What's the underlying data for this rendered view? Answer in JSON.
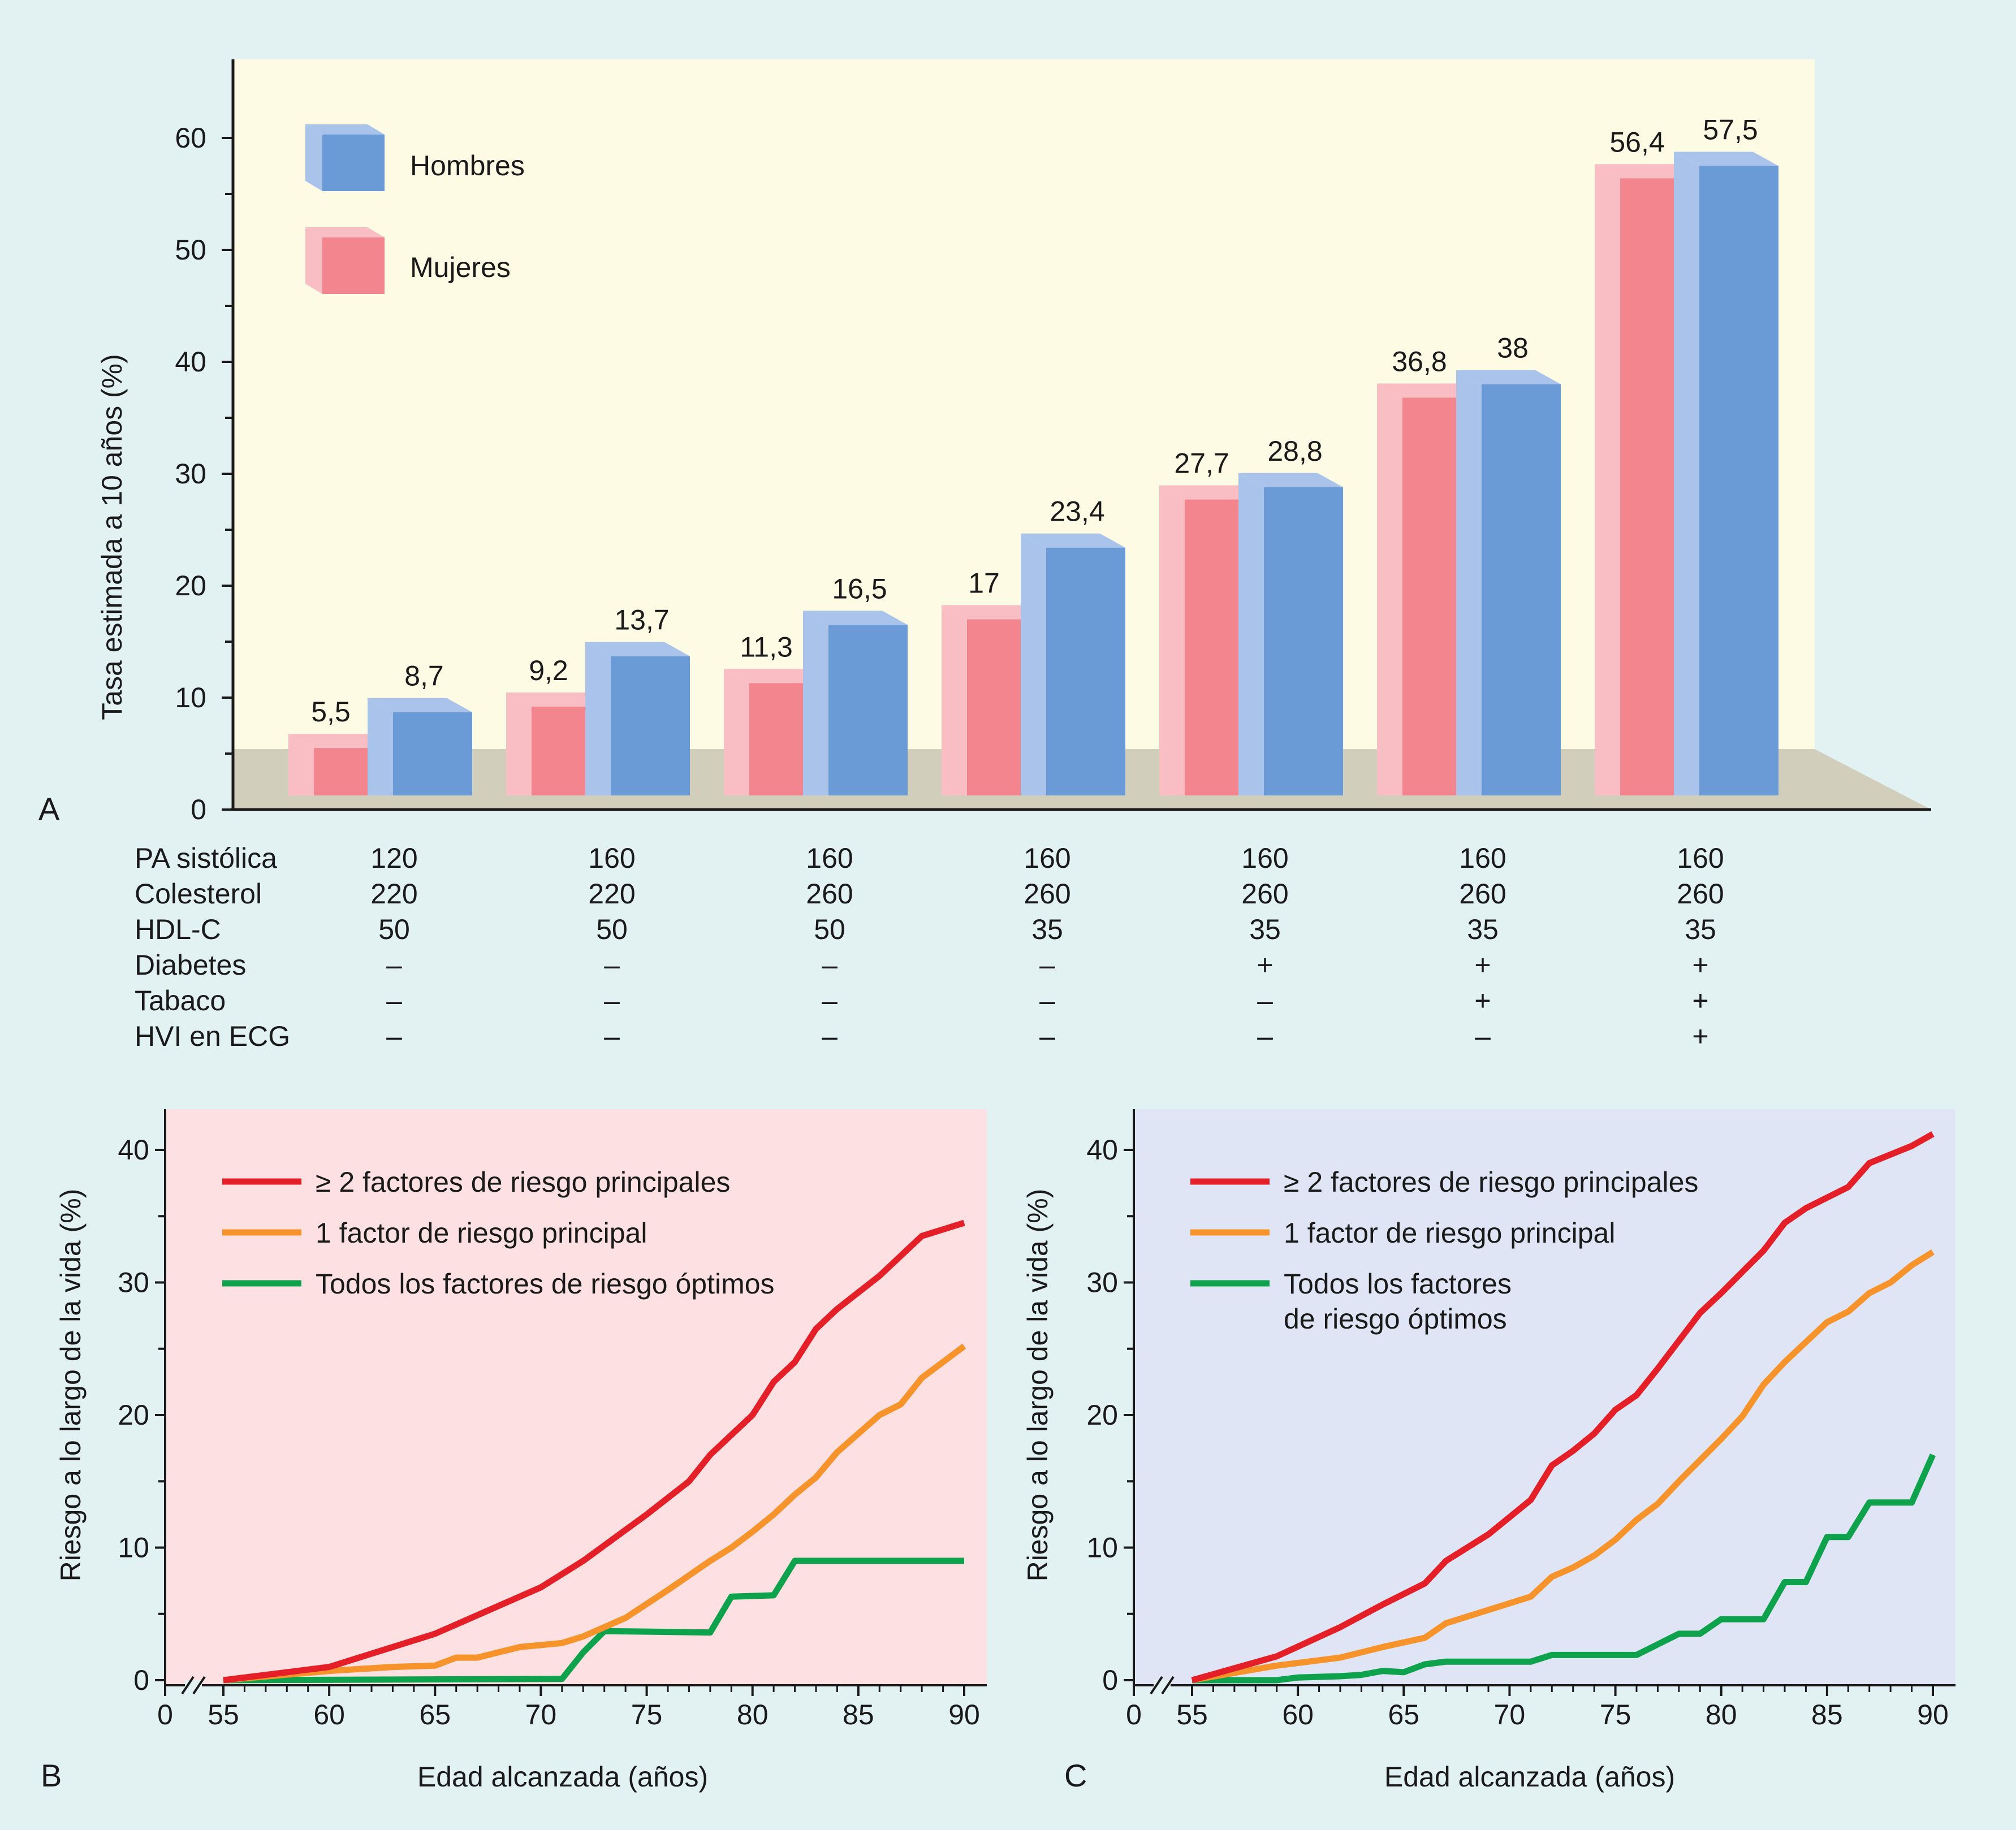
{
  "colors": {
    "outer_bg": "#e2f1f1",
    "panel_a_bg": "#fdfbe3",
    "floor": "#d2cebc",
    "men": "#6a9bd6",
    "men_light": "#a9c3ea",
    "women": "#f3858f",
    "women_light": "#f9bec3",
    "panel_b_bg": "#fde0e2",
    "panel_c_bg": "#dfe5f4",
    "red": "#e41f27",
    "orange": "#f6932a",
    "green": "#0fa24c"
  },
  "chart_data": [
    {
      "panel_label": "A",
      "type": "bar",
      "ylabel": "Tasa estimada a 10 años (%)",
      "ylim": [
        0,
        60
      ],
      "yticks": [
        "0",
        "10",
        "20",
        "30",
        "40",
        "50",
        "60"
      ],
      "legend": [
        "Hombres",
        "Mujeres"
      ],
      "series": [
        {
          "name": "Mujeres",
          "color": "women",
          "values": [
            5.5,
            9.2,
            11.3,
            17,
            27.7,
            36.8,
            56.4
          ],
          "labels": [
            "5,5",
            "9,2",
            "11,3",
            "17",
            "27,7",
            "36,8",
            "56,4"
          ]
        },
        {
          "name": "Hombres",
          "color": "men",
          "values": [
            8.7,
            13.7,
            16.5,
            23.4,
            28.8,
            38,
            57.5
          ],
          "labels": [
            "8,7",
            "13,7",
            "16,5",
            "23,4",
            "28,8",
            "38",
            "57,5"
          ]
        }
      ],
      "table": {
        "row_labels": [
          "PA sistólica",
          "Colesterol",
          "HDL-C",
          "Diabetes",
          "Tabaco",
          "HVI en ECG"
        ],
        "columns": [
          [
            "120",
            "220",
            "50",
            "–",
            "–",
            "–"
          ],
          [
            "160",
            "220",
            "50",
            "–",
            "–",
            "–"
          ],
          [
            "160",
            "260",
            "50",
            "–",
            "–",
            "–"
          ],
          [
            "160",
            "260",
            "35",
            "–",
            "–",
            "–"
          ],
          [
            "160",
            "260",
            "35",
            "+",
            "–",
            "–"
          ],
          [
            "160",
            "260",
            "35",
            "+",
            "+",
            "–"
          ],
          [
            "160",
            "260",
            "35",
            "+",
            "+",
            "+"
          ]
        ]
      }
    },
    {
      "panel_label": "B",
      "type": "line",
      "xlabel": "Edad alcanzada (años)",
      "ylabel": "Riesgo a lo largo de la vida (%)",
      "xlim": [
        55,
        90
      ],
      "ylim": [
        0,
        40
      ],
      "xticks": [
        "0",
        "55",
        "60",
        "65",
        "70",
        "75",
        "80",
        "85",
        "90"
      ],
      "yticks": [
        "0",
        "10",
        "20",
        "30",
        "40"
      ],
      "legend_lines": [
        [
          "≥ 2 factores de riesgo principales"
        ],
        [
          "1 factor de riesgo principal"
        ],
        [
          "Todos los factores de riesgo óptimos"
        ]
      ],
      "series": [
        {
          "name": "≥ 2 factores de riesgo principales",
          "color": "red",
          "points": [
            [
              55,
              0
            ],
            [
              60,
              1
            ],
            [
              65,
              3.5
            ],
            [
              70,
              7
            ],
            [
              72,
              9
            ],
            [
              75,
              12.5
            ],
            [
              77,
              15
            ],
            [
              78,
              17
            ],
            [
              80,
              20
            ],
            [
              81,
              22.5
            ],
            [
              82,
              24
            ],
            [
              83,
              26.5
            ],
            [
              84,
              28
            ],
            [
              86,
              30.5
            ],
            [
              88,
              33.5
            ],
            [
              90,
              34.5
            ]
          ]
        },
        {
          "name": "1 factor de riesgo principal",
          "color": "orange",
          "points": [
            [
              55,
              0
            ],
            [
              60,
              0.7
            ],
            [
              63,
              1
            ],
            [
              65,
              1.1
            ],
            [
              66,
              1.7
            ],
            [
              67,
              1.7
            ],
            [
              69,
              2.5
            ],
            [
              71,
              2.8
            ],
            [
              72,
              3.3
            ],
            [
              74,
              4.7
            ],
            [
              76,
              6.8
            ],
            [
              78,
              9
            ],
            [
              79,
              10
            ],
            [
              80,
              11.2
            ],
            [
              81,
              12.5
            ],
            [
              82,
              14
            ],
            [
              83,
              15.3
            ],
            [
              84,
              17.2
            ],
            [
              86,
              20
            ],
            [
              87,
              20.8
            ],
            [
              88,
              22.8
            ],
            [
              90,
              25.2
            ]
          ]
        },
        {
          "name": "Todos los factores de riesgo óptimos",
          "color": "green",
          "points": [
            [
              55,
              0
            ],
            [
              71,
              0.1
            ],
            [
              72,
              2.1
            ],
            [
              73,
              3.7
            ],
            [
              78,
              3.6
            ],
            [
              79,
              6.3
            ],
            [
              81,
              6.4
            ],
            [
              82,
              9
            ],
            [
              90,
              9
            ]
          ]
        }
      ]
    },
    {
      "panel_label": "C",
      "type": "line",
      "xlabel": "Edad alcanzada (años)",
      "ylabel": "Riesgo a lo largo de la vida (%)",
      "xlim": [
        55,
        90
      ],
      "ylim": [
        0,
        40
      ],
      "xticks": [
        "0",
        "55",
        "60",
        "65",
        "70",
        "75",
        "80",
        "85",
        "90"
      ],
      "yticks": [
        "0",
        "10",
        "20",
        "30",
        "40"
      ],
      "legend_lines": [
        [
          "≥ 2 factores de riesgo principales"
        ],
        [
          "1 factor de riesgo principal"
        ],
        [
          "Todos los factores",
          "de riesgo óptimos"
        ]
      ],
      "series": [
        {
          "name": "≥ 2 factores de riesgo principales",
          "color": "red",
          "points": [
            [
              55,
              0
            ],
            [
              59,
              1.8
            ],
            [
              62,
              4
            ],
            [
              64,
              5.7
            ],
            [
              66,
              7.3
            ],
            [
              67,
              9
            ],
            [
              69,
              11
            ],
            [
              71,
              13.6
            ],
            [
              72,
              16.2
            ],
            [
              73,
              17.3
            ],
            [
              74,
              18.6
            ],
            [
              75,
              20.4
            ],
            [
              76,
              21.5
            ],
            [
              77,
              23.5
            ],
            [
              79,
              27.7
            ],
            [
              80,
              29.2
            ],
            [
              81,
              30.8
            ],
            [
              82,
              32.4
            ],
            [
              83,
              34.5
            ],
            [
              84,
              35.6
            ],
            [
              86,
              37.2
            ],
            [
              87,
              39
            ],
            [
              89,
              40.3
            ],
            [
              90,
              41.2
            ]
          ]
        },
        {
          "name": "1 factor de riesgo principal",
          "color": "orange",
          "points": [
            [
              55,
              0
            ],
            [
              59,
              1.1
            ],
            [
              62,
              1.7
            ],
            [
              64,
              2.5
            ],
            [
              66,
              3.2
            ],
            [
              67,
              4.3
            ],
            [
              69,
              5.3
            ],
            [
              71,
              6.3
            ],
            [
              72,
              7.8
            ],
            [
              73,
              8.5
            ],
            [
              74,
              9.4
            ],
            [
              75,
              10.6
            ],
            [
              76,
              12.1
            ],
            [
              77,
              13.3
            ],
            [
              78,
              15
            ],
            [
              79,
              16.6
            ],
            [
              80,
              18.2
            ],
            [
              81,
              19.9
            ],
            [
              82,
              22.3
            ],
            [
              83,
              24
            ],
            [
              84,
              25.5
            ],
            [
              85,
              27
            ],
            [
              86,
              27.8
            ],
            [
              87,
              29.2
            ],
            [
              88,
              30
            ],
            [
              89,
              31.3
            ],
            [
              90,
              32.3
            ]
          ]
        },
        {
          "name": "Todos los factores de riesgo óptimos",
          "color": "green",
          "points": [
            [
              55,
              0
            ],
            [
              59,
              0
            ],
            [
              60,
              0.2
            ],
            [
              62,
              0.3
            ],
            [
              63,
              0.4
            ],
            [
              64,
              0.7
            ],
            [
              65,
              0.6
            ],
            [
              66,
              1.2
            ],
            [
              67,
              1.4
            ],
            [
              71,
              1.4
            ],
            [
              72,
              1.9
            ],
            [
              76,
              1.9
            ],
            [
              78,
              3.5
            ],
            [
              79,
              3.5
            ],
            [
              80,
              4.6
            ],
            [
              82,
              4.6
            ],
            [
              83,
              7.4
            ],
            [
              84,
              7.4
            ],
            [
              85,
              10.8
            ],
            [
              86,
              10.8
            ],
            [
              87,
              13.4
            ],
            [
              89,
              13.4
            ],
            [
              90,
              17
            ]
          ]
        }
      ]
    }
  ]
}
